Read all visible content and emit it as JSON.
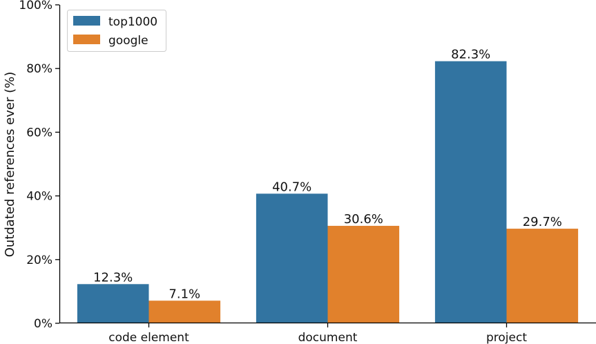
{
  "chart_data": {
    "type": "bar",
    "title": "",
    "xlabel": "",
    "ylabel": "Outdated references ever (%)",
    "ylim": [
      0,
      100
    ],
    "yticks": [
      0,
      20,
      40,
      60,
      80,
      100
    ],
    "ytick_labels": [
      "0%",
      "20%",
      "40%",
      "60%",
      "80%",
      "100%"
    ],
    "categories": [
      "code element",
      "document",
      "project"
    ],
    "series": [
      {
        "name": "top1000",
        "color": "#3274a1",
        "values": [
          12.3,
          40.7,
          82.3
        ],
        "labels": [
          "12.3%",
          "40.7%",
          "82.3%"
        ]
      },
      {
        "name": "google",
        "color": "#e1812c",
        "values": [
          7.1,
          30.6,
          29.7
        ],
        "labels": [
          "7.1%",
          "30.6%",
          "29.7%"
        ]
      }
    ],
    "legend": "top-left",
    "grid": false
  }
}
